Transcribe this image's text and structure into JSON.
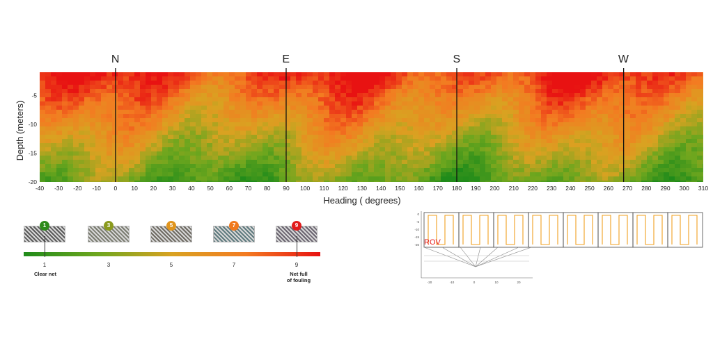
{
  "chart_data": {
    "type": "heatmap",
    "xlabel": "Heading ( degrees)",
    "ylabel": "Depth (meters)",
    "x_range": [
      -40,
      310
    ],
    "y_range": [
      -20,
      -1
    ],
    "x_ticks": [
      "-40",
      "-30",
      "-20",
      "-10",
      "0",
      "10",
      "20",
      "30",
      "40",
      "50",
      "60",
      "70",
      "80",
      "90",
      "100",
      "110",
      "120",
      "130",
      "140",
      "150",
      "160",
      "170",
      "180",
      "190",
      "200",
      "210",
      "220",
      "230",
      "240",
      "250",
      "260",
      "270",
      "280",
      "290",
      "300",
      "310"
    ],
    "y_ticks": [
      "-5",
      "-10",
      "-15",
      "-20"
    ],
    "compass_markers": [
      {
        "label": "N",
        "heading": 0
      },
      {
        "label": "E",
        "heading": 90
      },
      {
        "label": "S",
        "heading": 180
      },
      {
        "label": "W",
        "heading": 268
      }
    ],
    "colorscale": {
      "min": 1,
      "max": 9,
      "colors": [
        "#1f8b1a",
        "#6ea61e",
        "#d9a221",
        "#f37b21",
        "#e81212"
      ]
    },
    "value_description": "fouling level by heading and depth",
    "depth_profile": [
      {
        "depth": -1,
        "level": 8.2
      },
      {
        "depth": -5,
        "level": 7.4
      },
      {
        "depth": -10,
        "level": 6.4
      },
      {
        "depth": -15,
        "level": 4.6
      },
      {
        "depth": -20,
        "level": 2.8
      }
    ]
  },
  "legend": {
    "levels": [
      {
        "value": "1",
        "color": "#2e8b1c",
        "thumb": "#5a5a5a"
      },
      {
        "value": "3",
        "color": "#8a9a1e",
        "thumb": "#7a7c70"
      },
      {
        "value": "5",
        "color": "#e0951e",
        "thumb": "#6e6a62"
      },
      {
        "value": "7",
        "color": "#f07a1e",
        "thumb": "#5e7a7e"
      },
      {
        "value": "9",
        "color": "#e21c1c",
        "thumb": "#6a6470"
      }
    ],
    "scale_labels": [
      "1",
      "3",
      "5",
      "7",
      "9"
    ],
    "caption_low": "Clear net",
    "caption_high_line1": "Net full",
    "caption_high_line2": "of fouling"
  },
  "rov_diagram": {
    "label": "ROV",
    "label_color": "#e51c1c",
    "path_color": "#f0a020",
    "y_ticks": [
      "0",
      "-5",
      "-10",
      "-15",
      "-20"
    ],
    "x_ticks": [
      "-20",
      "-10",
      "0",
      "10",
      "20"
    ],
    "panel_count": 8
  }
}
